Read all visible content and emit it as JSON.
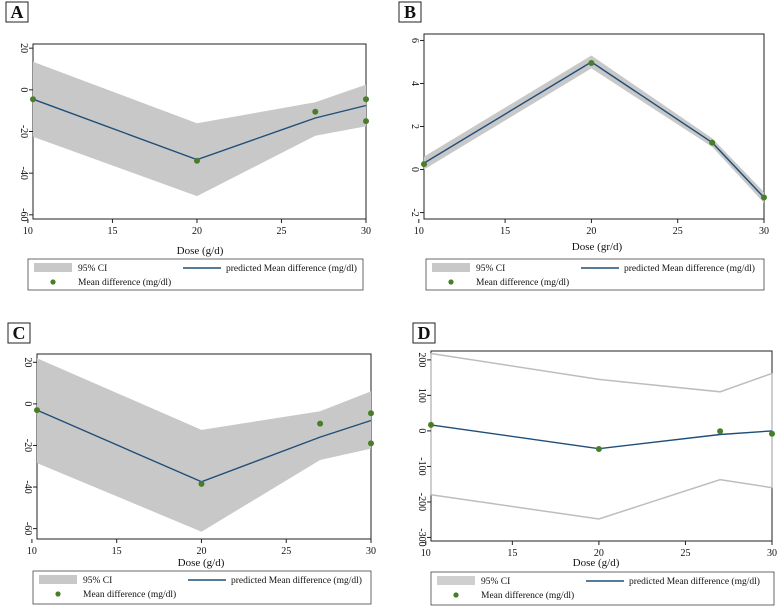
{
  "chart_data": [
    {
      "panel": "A",
      "type": "line",
      "xlabel": "Dose (g/d)",
      "ylabel": "",
      "xlim": [
        10.3,
        30
      ],
      "ylim": [
        -62,
        22
      ],
      "xticks": [
        10,
        15,
        20,
        25,
        30
      ],
      "yticks": [
        20,
        0,
        -20,
        -40,
        -60
      ],
      "ci_style": "filled",
      "series": [
        {
          "name": "95% CI",
          "kind": "band",
          "x": [
            10.3,
            20,
            27,
            30
          ],
          "upper": [
            13.5,
            -16,
            -6,
            2.5
          ],
          "lower": [
            -22.5,
            -51,
            -22,
            -17.5
          ]
        },
        {
          "name": "predicted Mean difference (mg/dl)",
          "kind": "line",
          "x": [
            10.3,
            20,
            27,
            30
          ],
          "values": [
            -4.5,
            -33.5,
            -13.5,
            -7.5
          ]
        },
        {
          "name": "Mean difference (mg/dl)",
          "kind": "points",
          "x": [
            10.3,
            20,
            27,
            30,
            30
          ],
          "values": [
            -4.5,
            -34,
            -10.5,
            -4.5,
            -15
          ]
        }
      ],
      "legend": {
        "ci": "95% CI",
        "line": "predicted Mean difference (mg/dl)",
        "points": "Mean difference (mg/dl)"
      }
    },
    {
      "panel": "B",
      "type": "line",
      "xlabel": "Dose (gr/d)",
      "ylabel": "",
      "xlim": [
        10.3,
        30
      ],
      "ylim": [
        -2.3,
        6.3
      ],
      "xticks": [
        10,
        15,
        20,
        25,
        30
      ],
      "yticks": [
        6,
        4,
        2,
        0,
        -2
      ],
      "ci_style": "filled",
      "series": [
        {
          "name": "95% CI",
          "kind": "band",
          "x": [
            10.3,
            20,
            27,
            30
          ],
          "upper": [
            0.6,
            5.3,
            1.45,
            -1.05
          ],
          "lower": [
            0.0,
            4.7,
            1.05,
            -1.55
          ]
        },
        {
          "name": "predicted Mean difference (mg/dl)",
          "kind": "line",
          "x": [
            10.3,
            20,
            27,
            30
          ],
          "values": [
            0.3,
            5.0,
            1.25,
            -1.3
          ]
        },
        {
          "name": "Mean difference (mg/dl)",
          "kind": "points",
          "x": [
            10.3,
            20,
            27,
            30
          ],
          "values": [
            0.25,
            4.95,
            1.25,
            -1.3
          ]
        }
      ],
      "legend": {
        "ci": "95% CI",
        "line": "predicted Mean difference (mg/dl)",
        "points": "Mean difference (mg/dl)"
      }
    },
    {
      "panel": "C",
      "type": "line",
      "xlabel": "Dose (g/d)",
      "ylabel": "",
      "xlim": [
        10.3,
        30
      ],
      "ylim": [
        -65,
        24
      ],
      "xticks": [
        10,
        15,
        20,
        25,
        30
      ],
      "yticks": [
        20,
        0,
        -20,
        -40,
        -60
      ],
      "ci_style": "filled",
      "series": [
        {
          "name": "95% CI",
          "kind": "band",
          "x": [
            10.3,
            20,
            27,
            30
          ],
          "upper": [
            22,
            -12.5,
            -3.5,
            6
          ],
          "lower": [
            -28.5,
            -61.5,
            -27,
            -21.5
          ]
        },
        {
          "name": "predicted Mean difference (mg/dl)",
          "kind": "line",
          "x": [
            10.3,
            20,
            27,
            30
          ],
          "values": [
            -3,
            -37.5,
            -16,
            -8
          ]
        },
        {
          "name": "Mean difference (mg/dl)",
          "kind": "points",
          "x": [
            10.3,
            20,
            27,
            30,
            30
          ],
          "values": [
            -3,
            -38.5,
            -9.5,
            -4.5,
            -19
          ]
        }
      ],
      "legend": {
        "ci": "95% CI",
        "line": "predicted Mean difference (mg/dl)",
        "points": "Mean difference (mg/dl)"
      }
    },
    {
      "panel": "D",
      "type": "line",
      "xlabel": "Dose (g/d)",
      "ylabel": "",
      "xlim": [
        10.3,
        30
      ],
      "ylim": [
        -310,
        225
      ],
      "xticks": [
        10,
        15,
        20,
        25,
        30
      ],
      "yticks": [
        200,
        100,
        0,
        -100,
        -200,
        -300
      ],
      "ci_style": "outline",
      "series": [
        {
          "name": "95% CI",
          "kind": "band",
          "x": [
            10.3,
            20,
            27,
            30
          ],
          "upper": [
            218,
            145,
            110,
            162
          ],
          "lower": [
            -180,
            -248,
            -137,
            -160
          ]
        },
        {
          "name": "predicted Mean difference (mg/dl)",
          "kind": "line",
          "x": [
            10.3,
            20,
            27,
            30
          ],
          "values": [
            17,
            -50,
            -10,
            0
          ]
        },
        {
          "name": "Mean difference (mg/dl)",
          "kind": "points",
          "x": [
            10.3,
            20,
            27,
            30
          ],
          "values": [
            17,
            -51,
            -1,
            -8
          ]
        }
      ],
      "legend": {
        "ci": "95% CI",
        "line": "predicted Mean difference (mg/dl)",
        "points": "Mean difference (mg/dl)"
      }
    }
  ],
  "colors": {
    "ci_fill": "#c8c8c8",
    "ci_outline": "#bdbdbd",
    "line": "#1f4e79",
    "point": "#4a7d28",
    "frame": "#222222"
  }
}
